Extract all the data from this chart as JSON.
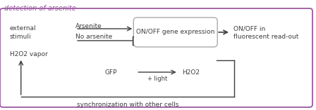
{
  "title": "detection of arsenite",
  "title_color": "#9b59a0",
  "border_color": "#9b59a0",
  "text_color": "#3d3d3d",
  "arrow_color": "#3d3d3d",
  "box_border_color": "#aaaaaa",
  "background_color": "#ffffff",
  "external_stimuli_label": "external\nstimuli",
  "arsenite_label": "Arsenite",
  "no_arsenite_label": "No arsenite",
  "gene_expr_label": "ON/OFF gene expression",
  "readout_label": "ON/OFF in\nfluorescent read-out",
  "h2o2_label": "H2O2 vapor",
  "gfp_label": "GFP",
  "light_label": "+ light",
  "h2o2_product_label": "H2O2",
  "sync_label": "synchronization with other cells",
  "fig_width": 4.48,
  "fig_height": 1.57,
  "dpi": 100
}
